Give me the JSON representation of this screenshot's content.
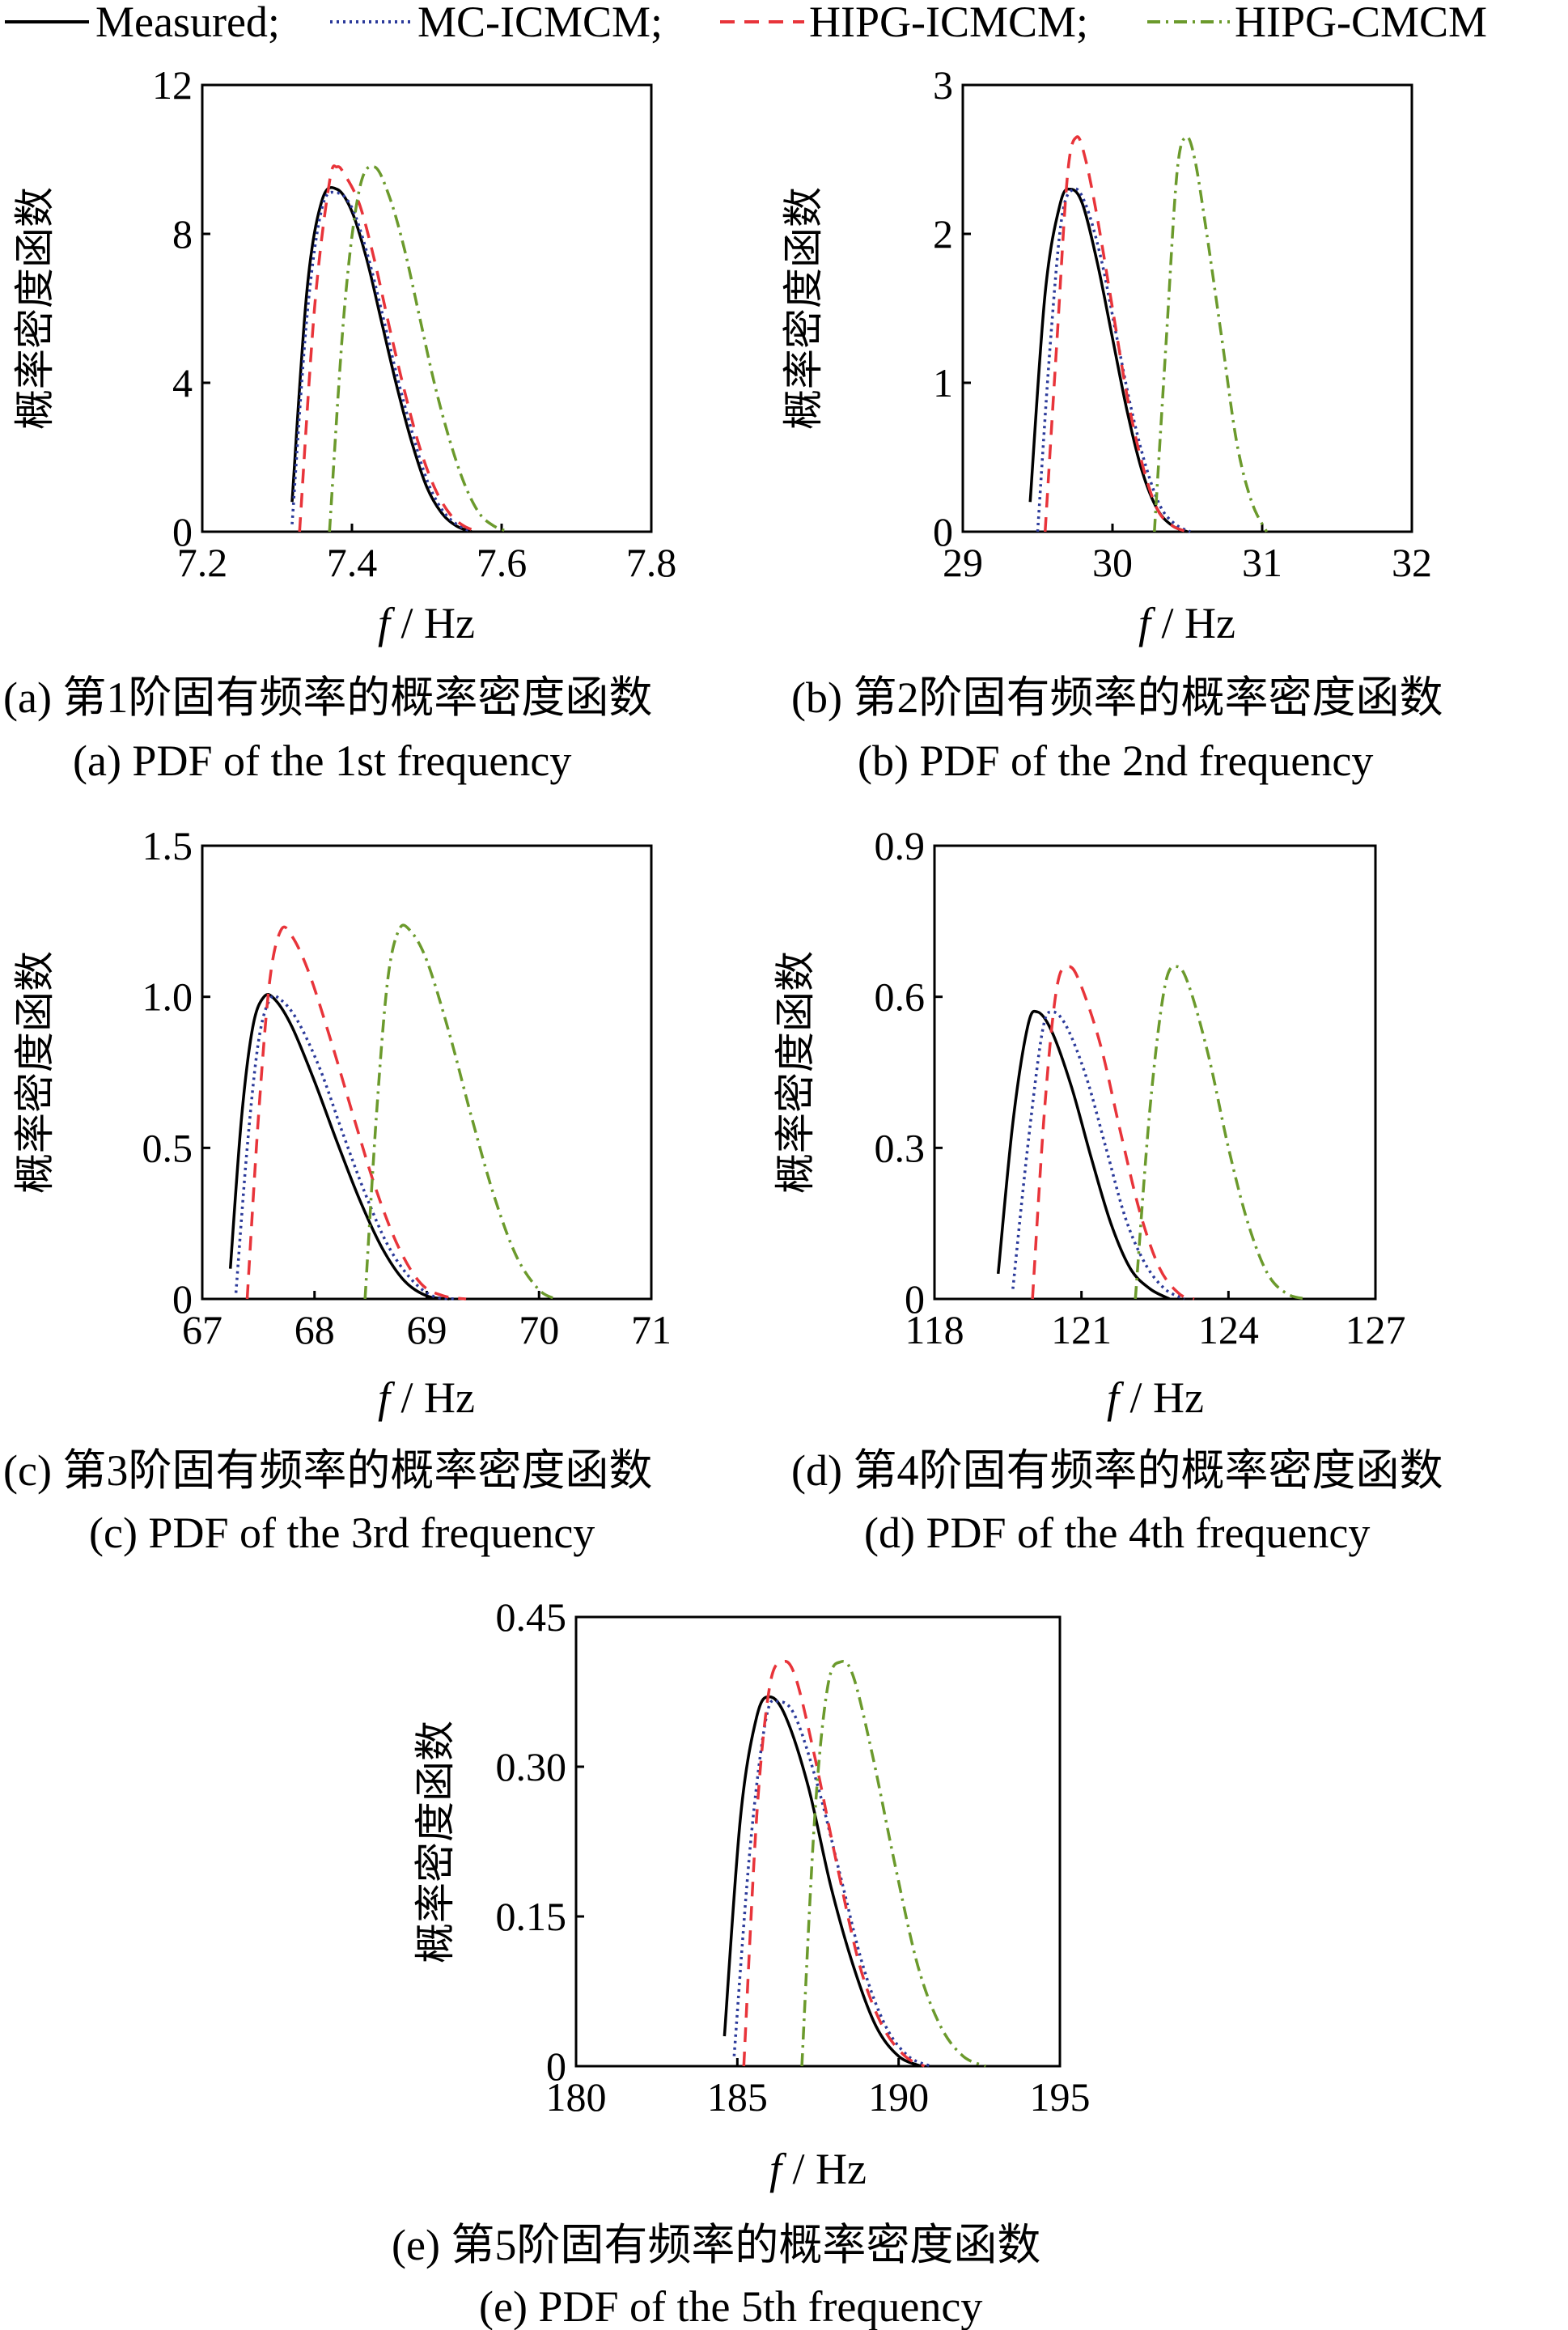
{
  "legend": [
    {
      "label": "Measured;",
      "color": "#000000",
      "dash": "solid"
    },
    {
      "label": "MC-ICMCM;",
      "color": "#2b3a9a",
      "dash": "dot"
    },
    {
      "label": "HIPG-ICMCM;",
      "color": "#e8343a",
      "dash": "dash"
    },
    {
      "label": "HIPG-CMCM",
      "color": "#6b9a2c",
      "dash": "dashdot"
    }
  ],
  "chart_data": [
    {
      "type": "line",
      "ylabel": "概率密度函数",
      "xlabel_italic": "f",
      "xlabel_rest": " / Hz",
      "xlim": [
        7.2,
        7.8
      ],
      "ylim": [
        0,
        12
      ],
      "xticks": [
        7.2,
        7.4,
        7.6,
        7.8
      ],
      "yticks": [
        0,
        4,
        8,
        12
      ],
      "xtick_labels": [
        "7.2",
        "7.4",
        "7.6",
        "7.8"
      ],
      "ytick_labels": [
        "0",
        "4",
        "8",
        "12"
      ],
      "caption_cn": "(a)  第1阶固有频率的概率密度函数",
      "caption_en": "(a)  PDF of the 1st frequency",
      "series": [
        {
          "name": "Measured",
          "x": [
            7.32,
            7.34,
            7.36,
            7.38,
            7.4,
            7.42,
            7.44,
            7.46,
            7.48,
            7.5,
            7.52,
            7.54,
            7.56
          ],
          "y": [
            0.8,
            6.5,
            8.9,
            9.2,
            8.6,
            7.3,
            5.6,
            3.9,
            2.4,
            1.2,
            0.5,
            0.15,
            0.0
          ]
        },
        {
          "name": "MC-ICMCM",
          "x": [
            7.32,
            7.34,
            7.36,
            7.38,
            7.4,
            7.42,
            7.44,
            7.46,
            7.48,
            7.5,
            7.52,
            7.54,
            7.56
          ],
          "y": [
            0.2,
            5.8,
            8.7,
            9.1,
            8.7,
            7.5,
            5.9,
            4.2,
            2.7,
            1.4,
            0.6,
            0.2,
            0.0
          ]
        },
        {
          "name": "HIPG-ICMCM",
          "x": [
            7.33,
            7.35,
            7.37,
            7.38,
            7.39,
            7.41,
            7.43,
            7.45,
            7.47,
            7.49,
            7.51,
            7.53,
            7.55,
            7.57
          ],
          "y": [
            0.0,
            6.0,
            9.4,
            9.8,
            9.6,
            8.8,
            7.3,
            5.5,
            3.8,
            2.3,
            1.2,
            0.5,
            0.15,
            0.0
          ]
        },
        {
          "name": "HIPG-CMCM",
          "x": [
            7.37,
            7.39,
            7.41,
            7.43,
            7.45,
            7.47,
            7.49,
            7.51,
            7.53,
            7.55,
            7.57,
            7.59,
            7.61
          ],
          "y": [
            0.0,
            6.0,
            9.2,
            9.8,
            9.0,
            7.6,
            5.8,
            4.0,
            2.5,
            1.3,
            0.5,
            0.15,
            0.0
          ]
        }
      ]
    },
    {
      "type": "line",
      "ylabel": "概率密度函数",
      "xlabel_italic": "f",
      "xlabel_rest": " / Hz",
      "xlim": [
        29,
        32
      ],
      "ylim": [
        0,
        3
      ],
      "xticks": [
        29,
        30,
        31,
        32
      ],
      "yticks": [
        0,
        1,
        2,
        3
      ],
      "xtick_labels": [
        "29",
        "30",
        "31",
        "32"
      ],
      "ytick_labels": [
        "0",
        "1",
        "2",
        "3"
      ],
      "caption_cn": "(b)  第2阶固有频率的概率密度函数",
      "caption_en": "(b)  PDF of the 2nd frequency",
      "series": [
        {
          "name": "Measured",
          "x": [
            29.45,
            29.55,
            29.65,
            29.72,
            29.8,
            29.9,
            30.0,
            30.1,
            30.2,
            30.3,
            30.4,
            30.5
          ],
          "y": [
            0.2,
            1.6,
            2.2,
            2.3,
            2.2,
            1.8,
            1.3,
            0.8,
            0.4,
            0.15,
            0.04,
            0.0
          ]
        },
        {
          "name": "MC-ICMCM",
          "x": [
            29.5,
            29.58,
            29.66,
            29.74,
            29.82,
            29.92,
            30.02,
            30.12,
            30.22,
            30.32,
            30.42,
            30.52
          ],
          "y": [
            0.0,
            1.2,
            2.1,
            2.3,
            2.2,
            1.85,
            1.35,
            0.85,
            0.45,
            0.17,
            0.05,
            0.0
          ]
        },
        {
          "name": "HIPG-ICMCM",
          "x": [
            29.55,
            29.63,
            29.7,
            29.76,
            29.82,
            29.9,
            30.0,
            30.1,
            30.2,
            30.3,
            30.4,
            30.5
          ],
          "y": [
            0.0,
            1.3,
            2.4,
            2.65,
            2.5,
            2.1,
            1.5,
            0.9,
            0.45,
            0.15,
            0.04,
            0.0
          ]
        },
        {
          "name": "HIPG-CMCM",
          "x": [
            30.28,
            30.36,
            30.43,
            30.49,
            30.55,
            30.63,
            30.73,
            30.83,
            30.93,
            31.03
          ],
          "y": [
            0.0,
            1.3,
            2.4,
            2.65,
            2.5,
            2.0,
            1.3,
            0.6,
            0.2,
            0.0
          ]
        }
      ]
    },
    {
      "type": "line",
      "ylabel": "概率密度函数",
      "xlabel_italic": "f",
      "xlabel_rest": " / Hz",
      "xlim": [
        67,
        71
      ],
      "ylim": [
        0,
        1.5
      ],
      "xticks": [
        67,
        68,
        69,
        70,
        71
      ],
      "yticks": [
        0,
        0.5,
        1.0,
        1.5
      ],
      "xtick_labels": [
        "67",
        "68",
        "69",
        "70",
        "71"
      ],
      "ytick_labels": [
        "0",
        "0.5",
        "1.0",
        "1.5"
      ],
      "caption_cn": "(c)  第3阶固有频率的概率密度函数",
      "caption_en": "(c)  PDF of the 3rd frequency",
      "series": [
        {
          "name": "Measured",
          "x": [
            67.25,
            67.35,
            67.45,
            67.55,
            67.65,
            67.8,
            68.0,
            68.2,
            68.4,
            68.6,
            68.8,
            69.0,
            69.2
          ],
          "y": [
            0.1,
            0.6,
            0.9,
            1.0,
            0.99,
            0.9,
            0.72,
            0.52,
            0.33,
            0.17,
            0.06,
            0.01,
            0.0
          ]
        },
        {
          "name": "MC-ICMCM",
          "x": [
            67.3,
            67.4,
            67.5,
            67.6,
            67.7,
            67.85,
            68.05,
            68.25,
            68.45,
            68.65,
            68.85,
            69.05,
            69.25
          ],
          "y": [
            0.02,
            0.5,
            0.85,
            0.99,
            0.99,
            0.92,
            0.76,
            0.55,
            0.35,
            0.18,
            0.07,
            0.01,
            0.0
          ]
        },
        {
          "name": "HIPG-ICMCM",
          "x": [
            67.4,
            67.5,
            67.6,
            67.7,
            67.8,
            67.95,
            68.15,
            68.35,
            68.55,
            68.75,
            68.95,
            69.15,
            69.35
          ],
          "y": [
            0.0,
            0.6,
            1.05,
            1.22,
            1.2,
            1.08,
            0.85,
            0.6,
            0.36,
            0.17,
            0.05,
            0.01,
            0.0
          ]
        },
        {
          "name": "HIPG-CMCM",
          "x": [
            68.45,
            68.55,
            68.65,
            68.75,
            68.85,
            69.0,
            69.2,
            69.4,
            69.6,
            69.8,
            70.0,
            70.15
          ],
          "y": [
            0.0,
            0.6,
            1.05,
            1.22,
            1.22,
            1.12,
            0.88,
            0.6,
            0.34,
            0.14,
            0.03,
            0.0
          ]
        }
      ]
    },
    {
      "type": "line",
      "ylabel": "概率密度函数",
      "xlabel_italic": "f",
      "xlabel_rest": " / Hz",
      "xlim": [
        118,
        127
      ],
      "ylim": [
        0,
        0.9
      ],
      "xticks": [
        118,
        121,
        124,
        127
      ],
      "yticks": [
        0,
        0.3,
        0.6,
        0.9
      ],
      "xtick_labels": [
        "118",
        "121",
        "124",
        "127"
      ],
      "ytick_labels": [
        "0",
        "0.3",
        "0.6",
        "0.9"
      ],
      "caption_cn": "(d)  第4阶固有频率的概率密度函数",
      "caption_en": "(d)  PDF of the 4th frequency",
      "series": [
        {
          "name": "Measured",
          "x": [
            119.3,
            119.6,
            119.9,
            120.1,
            120.4,
            120.8,
            121.2,
            121.6,
            122.0,
            122.4,
            122.8
          ],
          "y": [
            0.05,
            0.35,
            0.54,
            0.57,
            0.53,
            0.42,
            0.28,
            0.15,
            0.06,
            0.02,
            0.0
          ]
        },
        {
          "name": "MC-ICMCM",
          "x": [
            119.6,
            119.9,
            120.2,
            120.4,
            120.7,
            121.1,
            121.5,
            121.9,
            122.3,
            122.7,
            123.1
          ],
          "y": [
            0.02,
            0.3,
            0.53,
            0.57,
            0.54,
            0.44,
            0.3,
            0.16,
            0.07,
            0.02,
            0.0
          ]
        },
        {
          "name": "HIPG-ICMCM",
          "x": [
            120.0,
            120.25,
            120.5,
            120.75,
            121.0,
            121.4,
            121.8,
            122.2,
            122.6,
            123.0,
            123.3
          ],
          "y": [
            0.0,
            0.38,
            0.62,
            0.66,
            0.62,
            0.5,
            0.33,
            0.17,
            0.06,
            0.01,
            0.0
          ]
        },
        {
          "name": "HIPG-CMCM",
          "x": [
            122.1,
            122.4,
            122.7,
            122.95,
            123.2,
            123.6,
            124.0,
            124.4,
            124.8,
            125.2,
            125.6
          ],
          "y": [
            0.0,
            0.38,
            0.62,
            0.66,
            0.62,
            0.48,
            0.3,
            0.15,
            0.05,
            0.01,
            0.0
          ]
        }
      ]
    },
    {
      "type": "line",
      "ylabel": "概率密度函数",
      "xlabel_italic": "f",
      "xlabel_rest": " / Hz",
      "xlim": [
        180,
        195
      ],
      "ylim": [
        0,
        0.45
      ],
      "xticks": [
        180,
        185,
        190,
        195
      ],
      "yticks": [
        0,
        0.15,
        0.3,
        0.45
      ],
      "xtick_labels": [
        "180",
        "185",
        "190",
        "195"
      ],
      "ytick_labels": [
        "0",
        "0.15",
        "0.30",
        "0.45"
      ],
      "caption_cn": "(e)  第5阶固有频率的概率密度函数",
      "caption_en": "(e)  PDF of the 5th frequency",
      "series": [
        {
          "name": "Measured",
          "x": [
            184.6,
            185.1,
            185.6,
            186.0,
            186.5,
            187.2,
            187.9,
            188.6,
            189.3,
            190.0,
            190.7
          ],
          "y": [
            0.03,
            0.25,
            0.35,
            0.37,
            0.35,
            0.28,
            0.18,
            0.1,
            0.04,
            0.01,
            0.0
          ]
        },
        {
          "name": "MC-ICMCM",
          "x": [
            184.9,
            185.4,
            185.9,
            186.3,
            186.8,
            187.5,
            188.2,
            188.9,
            189.6,
            190.3,
            191.0
          ],
          "y": [
            0.01,
            0.22,
            0.35,
            0.365,
            0.35,
            0.28,
            0.19,
            0.1,
            0.04,
            0.01,
            0.0
          ]
        },
        {
          "name": "HIPG-ICMCM",
          "x": [
            185.2,
            185.6,
            186.0,
            186.4,
            186.8,
            187.4,
            188.1,
            188.8,
            189.5,
            190.2,
            190.8
          ],
          "y": [
            0.0,
            0.25,
            0.38,
            0.405,
            0.39,
            0.31,
            0.2,
            0.1,
            0.04,
            0.01,
            0.0
          ]
        },
        {
          "name": "HIPG-CMCM",
          "x": [
            187.0,
            187.4,
            187.8,
            188.2,
            188.6,
            189.2,
            189.9,
            190.6,
            191.3,
            192.0,
            192.7
          ],
          "y": [
            0.0,
            0.25,
            0.38,
            0.405,
            0.39,
            0.31,
            0.2,
            0.1,
            0.04,
            0.01,
            0.0
          ]
        }
      ]
    }
  ]
}
